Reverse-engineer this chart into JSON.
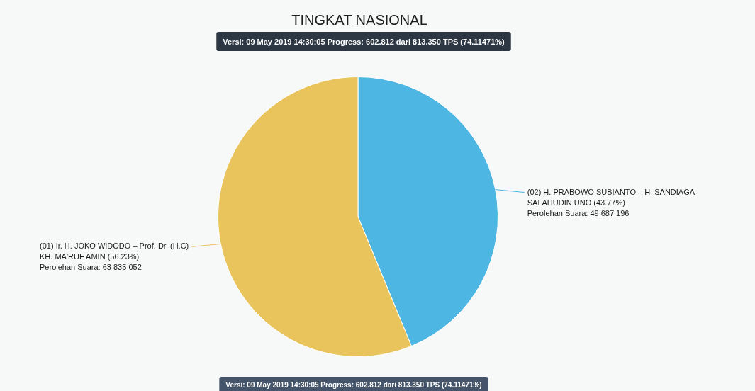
{
  "chart_data": {
    "type": "pie",
    "title": "TINGKAT NASIONAL",
    "subtitle": "Versi: 09 May 2019 14:30:05 Progress: 602.812 dari 813.350 TPS (74.11471%)",
    "categories": [
      "(02) H. PRABOWO SUBIANTO – H. SANDIAGA SALAHUDIN UNO (43.77%)",
      "(01) Ir. H. JOKO WIDODO – Prof. Dr. (H.C) KH. MA'RUF AMIN (56.23%)"
    ],
    "values": [
      49687196,
      63835052
    ],
    "colors": [
      "#4db6e2",
      "#e9c35c"
    ],
    "value_labels": [
      "Perolehan Suara: 49 687 196",
      "Perolehan Suara: 63 835 052"
    ],
    "annotations": [
      "Versi: 09 May 2019 14:30:05 Progress: 602.812 dari 813.350 TPS (74.11471%)"
    ]
  }
}
